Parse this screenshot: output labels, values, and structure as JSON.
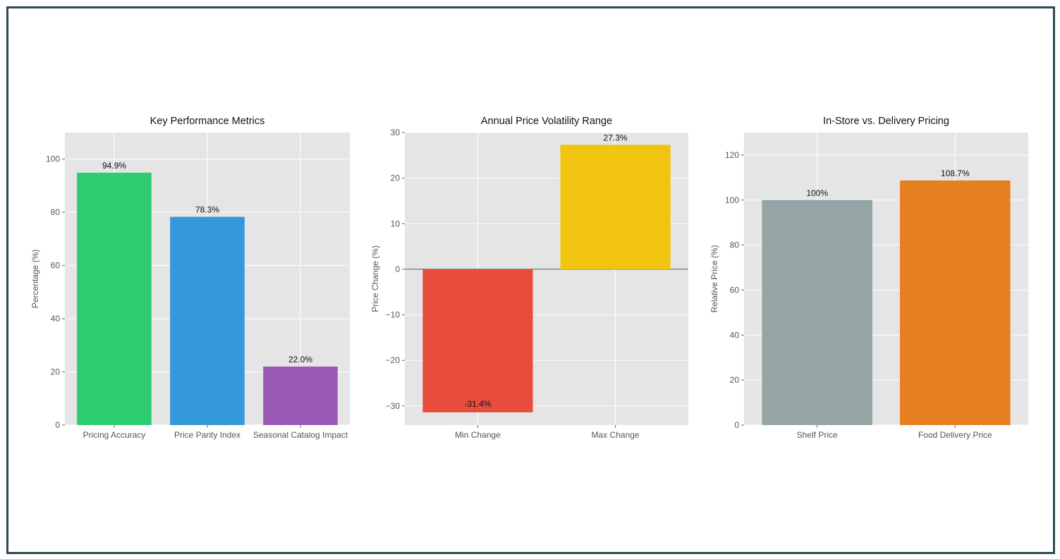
{
  "chart_data": [
    {
      "type": "bar",
      "title": "Key Performance Metrics",
      "ylabel": "Percentage (%)",
      "xlabel": "",
      "categories": [
        "Pricing Accuracy",
        "Price Parity Index",
        "Seasonal Catalog Impact"
      ],
      "values": [
        94.9,
        78.3,
        22.0
      ],
      "data_labels": [
        "94.9%",
        "78.3%",
        "22.0%"
      ],
      "colors": [
        "#2ecc71",
        "#3498db",
        "#9b59b6"
      ],
      "ylim": [
        0,
        110
      ],
      "yticks": [
        0,
        20,
        40,
        60,
        80,
        100
      ],
      "grid": true
    },
    {
      "type": "bar",
      "title": "Annual Price Volatility Range",
      "ylabel": "Price Change (%)",
      "xlabel": "",
      "categories": [
        "Min Change",
        "Max Change"
      ],
      "values": [
        -31.4,
        27.3
      ],
      "data_labels": [
        "-31.4%",
        "27.3%"
      ],
      "colors": [
        "#e74c3c",
        "#f1c40f"
      ],
      "ylim": [
        -34.2,
        30
      ],
      "yticks": [
        -30,
        -20,
        -10,
        0,
        10,
        20,
        30
      ],
      "zero_line": true,
      "grid": true
    },
    {
      "type": "bar",
      "title": "In-Store vs. Delivery Pricing",
      "ylabel": "Relative Price (%)",
      "xlabel": "",
      "categories": [
        "Shelf Price",
        "Food Delivery Price"
      ],
      "values": [
        100,
        108.7
      ],
      "data_labels": [
        "100%",
        "108.7%"
      ],
      "colors": [
        "#95a5a6",
        "#e67e22"
      ],
      "ylim": [
        0,
        130
      ],
      "yticks": [
        0,
        20,
        40,
        60,
        80,
        100,
        120
      ],
      "grid": true
    }
  ],
  "colors": {
    "frame": "#2d4b53",
    "plot_background": "#e5e5e5",
    "grid": "#ffffff"
  }
}
